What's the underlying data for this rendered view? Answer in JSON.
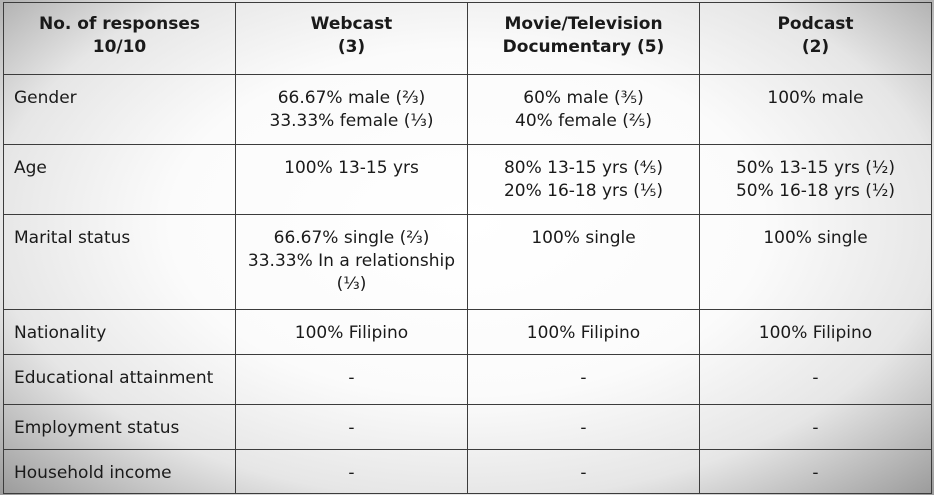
{
  "table": {
    "headers": [
      [
        "No. of responses",
        "10/10"
      ],
      [
        "Webcast",
        "(3)"
      ],
      [
        "Movie/Television",
        "Documentary (5)"
      ],
      [
        "Podcast",
        "(2)"
      ]
    ],
    "rows": [
      {
        "label": "Gender",
        "cells": [
          [
            "66.67% male (⅔)",
            "33.33% female (⅓)"
          ],
          [
            "60% male (⅗)",
            "40% female (⅖)"
          ],
          [
            "100% male"
          ]
        ]
      },
      {
        "label": "Age",
        "cells": [
          [
            "100% 13-15 yrs"
          ],
          [
            "80% 13-15 yrs (⅘)",
            "20% 16-18 yrs (⅕)"
          ],
          [
            "50% 13-15 yrs (½)",
            "50% 16-18 yrs (½)"
          ]
        ]
      },
      {
        "label": "Marital status",
        "cells": [
          [
            "66.67% single (⅔)",
            "33.33% In a relationship",
            "(⅓)"
          ],
          [
            "100% single"
          ],
          [
            "100% single"
          ]
        ]
      },
      {
        "label": "Nationality",
        "cells": [
          [
            "100% Filipino"
          ],
          [
            "100% Filipino"
          ],
          [
            "100% Filipino"
          ]
        ]
      },
      {
        "label": "Educational attainment",
        "cells": [
          [
            "-"
          ],
          [
            "-"
          ],
          [
            "-"
          ]
        ]
      },
      {
        "label": "Employment status",
        "cells": [
          [
            "-"
          ],
          [
            "-"
          ],
          [
            "-"
          ]
        ]
      },
      {
        "label": "Household income",
        "cells": [
          [
            "-"
          ],
          [
            "-"
          ],
          [
            "-"
          ]
        ]
      }
    ]
  }
}
